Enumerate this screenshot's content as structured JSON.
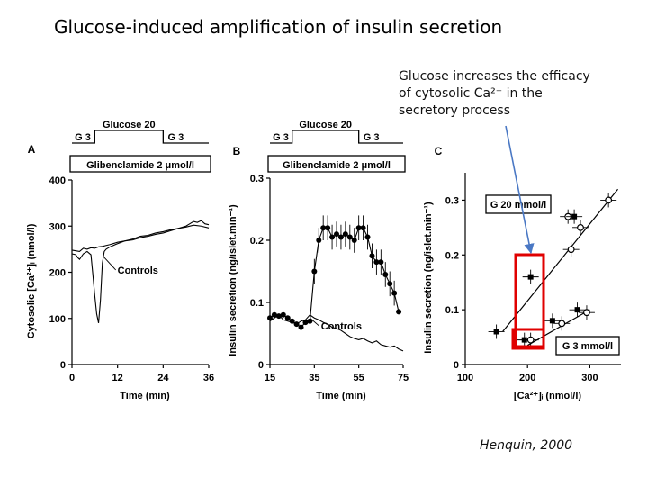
{
  "slide": {
    "title": "Glucose-induced amplification of insulin secretion",
    "note_lines": [
      "Glucose increases the efficacy",
      "of cytosolic Ca²⁺ in the",
      "secretory process"
    ],
    "citation": "Henquin, 2000",
    "arrow_color": "#4a78c4",
    "highlight_color": "#e00000"
  },
  "chart_data": [
    {
      "type": "line",
      "panel_label": "A",
      "protocol": {
        "glucose_high": "Glucose 20",
        "glucose_low_left": "G 3",
        "glucose_low_right": "G 3",
        "drug": "Glibenclamide 2 μmol/l"
      },
      "xlabel": "Time (min)",
      "ylabel": "Cytosolic [Ca²⁺]ᵢ (nmol/l)",
      "xlim": [
        0,
        36
      ],
      "ylim": [
        0,
        400
      ],
      "xticks": [
        0,
        12,
        24,
        36
      ],
      "yticks": [
        0,
        100,
        200,
        300,
        400
      ],
      "series": [
        {
          "name": "",
          "x": [
            0,
            2,
            3,
            4,
            5,
            6,
            7,
            8,
            9,
            10,
            12,
            14,
            16,
            18,
            20,
            22,
            24,
            26,
            28,
            30,
            31,
            32,
            33,
            34,
            35,
            36
          ],
          "y": [
            248,
            245,
            252,
            250,
            253,
            252,
            255,
            256,
            258,
            260,
            265,
            268,
            270,
            275,
            278,
            282,
            285,
            290,
            295,
            300,
            305,
            310,
            308,
            312,
            305,
            303
          ]
        },
        {
          "name": "Controls",
          "x": [
            0,
            1,
            1.5,
            2,
            3,
            4,
            5,
            5.5,
            6,
            6.5,
            7,
            7.5,
            8,
            8.5,
            9,
            10,
            12,
            14,
            16,
            18,
            20,
            22,
            24,
            26,
            28,
            30,
            32,
            34,
            36
          ],
          "y": [
            240,
            238,
            232,
            228,
            240,
            245,
            238,
            195,
            150,
            110,
            90,
            140,
            220,
            245,
            250,
            255,
            262,
            268,
            272,
            278,
            280,
            285,
            288,
            292,
            295,
            298,
            302,
            300,
            296
          ]
        }
      ]
    },
    {
      "type": "line",
      "panel_label": "B",
      "protocol": {
        "glucose_high": "Glucose 20",
        "glucose_low_left": "G 3",
        "glucose_low_right": "G 3",
        "drug": "Glibenclamide 2 μmol/l"
      },
      "xlabel": "Time (min)",
      "ylabel": "Insulin secretion (ng/islet.min⁻¹)",
      "xlim": [
        15,
        75
      ],
      "ylim": [
        0,
        0.3
      ],
      "xticks": [
        15,
        35,
        55,
        75
      ],
      "yticks": [
        0,
        0.1,
        0.2,
        0.3
      ],
      "series": [
        {
          "name": "",
          "x": [
            15,
            17,
            19,
            21,
            23,
            25,
            27,
            29,
            31,
            33,
            35,
            37,
            39,
            41,
            43,
            45,
            47,
            49,
            51,
            53,
            55,
            57,
            59,
            61,
            63,
            65,
            67,
            69,
            71,
            73
          ],
          "y": [
            0.075,
            0.08,
            0.078,
            0.08,
            0.075,
            0.07,
            0.065,
            0.06,
            0.068,
            0.07,
            0.15,
            0.2,
            0.22,
            0.22,
            0.205,
            0.21,
            0.205,
            0.21,
            0.205,
            0.2,
            0.22,
            0.22,
            0.205,
            0.175,
            0.165,
            0.165,
            0.145,
            0.13,
            0.115,
            0.085
          ]
        },
        {
          "name": "Controls",
          "x": [
            15,
            17,
            19,
            21,
            23,
            25,
            27,
            29,
            31,
            33,
            35,
            37,
            39,
            41,
            43,
            45,
            47,
            49,
            51,
            53,
            55,
            57,
            59,
            61,
            63,
            65,
            67,
            69,
            71,
            73,
            75
          ],
          "y": [
            0.07,
            0.075,
            0.08,
            0.072,
            0.07,
            0.068,
            0.065,
            0.07,
            0.072,
            0.08,
            0.075,
            0.072,
            0.068,
            0.065,
            0.06,
            0.058,
            0.055,
            0.05,
            0.045,
            0.042,
            0.04,
            0.042,
            0.038,
            0.035,
            0.038,
            0.032,
            0.03,
            0.028,
            0.03,
            0.025,
            0.022
          ]
        }
      ]
    },
    {
      "type": "scatter",
      "panel_label": "C",
      "xlabel": "[Ca²⁺]ᵢ (nmol/l)",
      "ylabel": "Insulin secretion (ng/islet.min⁻¹)",
      "xlim": [
        100,
        350
      ],
      "ylim": [
        0,
        0.35
      ],
      "xticks": [
        100,
        200,
        300
      ],
      "yticks": [
        0,
        0.1,
        0.2,
        0.3
      ],
      "series": [
        {
          "name": "G 20 mmol/l",
          "points": [
            {
              "x": 205,
              "y": 0.16,
              "filled": true
            },
            {
              "x": 265,
              "y": 0.27,
              "filled": false
            },
            {
              "x": 275,
              "y": 0.27,
              "filled": true
            },
            {
              "x": 270,
              "y": 0.21,
              "filled": false
            },
            {
              "x": 285,
              "y": 0.25,
              "filled": false
            },
            {
              "x": 330,
              "y": 0.3,
              "filled": false
            }
          ],
          "fit": {
            "x": [
              160,
              345
            ],
            "y": [
              0.06,
              0.32
            ]
          }
        },
        {
          "name": "G 3 mmol/l",
          "points": [
            {
              "x": 150,
              "y": 0.06,
              "filled": true
            },
            {
              "x": 195,
              "y": 0.045,
              "filled": true
            },
            {
              "x": 205,
              "y": 0.045,
              "filled": false
            },
            {
              "x": 240,
              "y": 0.08,
              "filled": true
            },
            {
              "x": 255,
              "y": 0.075,
              "filled": false
            },
            {
              "x": 280,
              "y": 0.1,
              "filled": true
            },
            {
              "x": 295,
              "y": 0.095,
              "filled": false
            }
          ],
          "fit": {
            "x": [
              200,
              300
            ],
            "y": [
              0.035,
              0.1
            ]
          }
        }
      ]
    }
  ]
}
